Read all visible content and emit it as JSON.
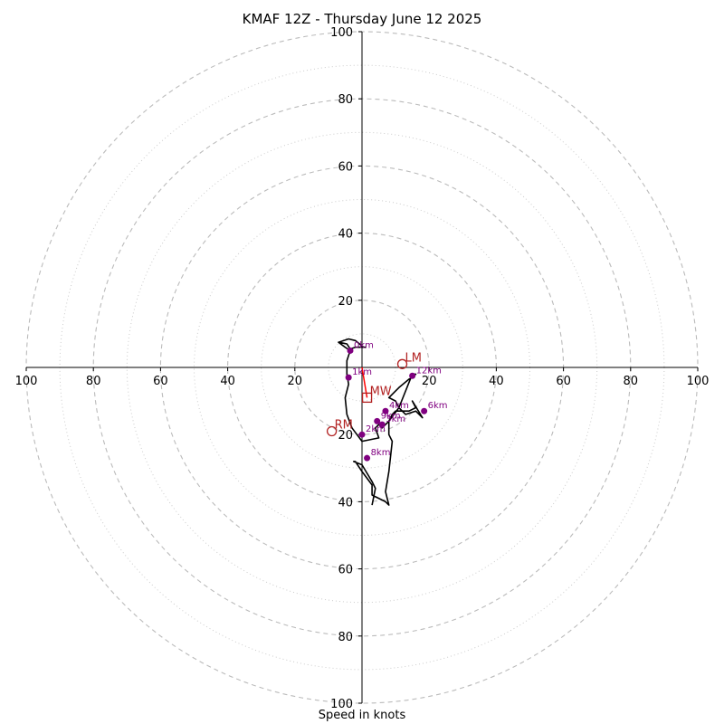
{
  "chart_data": {
    "type": "scatter",
    "title": "KMAF 12Z - Thursday June 12 2025",
    "xlabel": "Speed in knots",
    "ylabel": "",
    "xlim": [
      -100,
      100
    ],
    "ylim": [
      -100,
      100
    ],
    "grid": true,
    "rings_major": [
      20,
      40,
      60,
      80,
      100
    ],
    "rings_minor": [
      10,
      30,
      50,
      70,
      90
    ],
    "x_ticks": [
      "100",
      "80",
      "60",
      "40",
      "20",
      "20",
      "40",
      "60",
      "80",
      "100"
    ],
    "x_tick_values": [
      -100,
      -80,
      -60,
      -40,
      -20,
      20,
      40,
      60,
      80,
      100
    ],
    "y_ticks": [
      "100",
      "80",
      "60",
      "40",
      "20",
      "20",
      "40",
      "60",
      "80",
      "100"
    ],
    "y_tick_values": [
      100,
      80,
      60,
      40,
      20,
      -20,
      -40,
      -60,
      -80,
      -100
    ],
    "hodograph_trace": [
      [
        -7,
        7.5
      ],
      [
        -4,
        8.5
      ],
      [
        -2,
        8
      ],
      [
        0.5,
        6
      ],
      [
        1,
        6
      ],
      [
        -2,
        6
      ],
      [
        -3.5,
        5.5
      ],
      [
        -4.5,
        7
      ],
      [
        -7,
        7.5
      ],
      [
        -5,
        6
      ],
      [
        -3.5,
        5
      ],
      [
        -4.5,
        2
      ],
      [
        -4.5,
        -2
      ],
      [
        -4,
        -5
      ],
      [
        -5,
        -9
      ],
      [
        -4.5,
        -14
      ],
      [
        -3,
        -18
      ],
      [
        -1.5,
        -20
      ],
      [
        0,
        -22
      ],
      [
        5,
        -21
      ],
      [
        4,
        -18
      ],
      [
        5,
        -17
      ],
      [
        6,
        -18
      ],
      [
        8,
        -16
      ],
      [
        9,
        -14
      ],
      [
        10,
        -13
      ],
      [
        14,
        -13
      ],
      [
        16,
        -12
      ],
      [
        15,
        -10
      ],
      [
        18,
        -15
      ],
      [
        16,
        -13
      ],
      [
        13,
        -14
      ],
      [
        11,
        -12
      ],
      [
        10,
        -10
      ],
      [
        8,
        -9
      ],
      [
        11,
        -6
      ],
      [
        14,
        -3.5
      ],
      [
        15,
        -3
      ],
      [
        16,
        -2
      ],
      [
        15,
        -2
      ],
      [
        11,
        -12
      ],
      [
        8,
        -16
      ],
      [
        8,
        -20
      ],
      [
        9,
        -22
      ],
      [
        8,
        -31
      ],
      [
        7,
        -37
      ],
      [
        8,
        -41
      ],
      [
        7,
        -40
      ],
      [
        3,
        -38
      ],
      [
        3,
        -35
      ],
      [
        0,
        -31
      ],
      [
        -2,
        -28
      ],
      [
        -2.5,
        -28
      ],
      [
        0,
        -29
      ],
      [
        3,
        -34
      ],
      [
        4,
        -36
      ],
      [
        3,
        -41
      ]
    ],
    "height_points": [
      {
        "label": "0km",
        "u": -3.5,
        "v": 5
      },
      {
        "label": "1km",
        "u": -4,
        "v": -3
      },
      {
        "label": "2km",
        "u": 0,
        "v": -20
      },
      {
        "label": "3km",
        "u": 6,
        "v": -17
      },
      {
        "label": "4km",
        "u": 7,
        "v": -13
      },
      {
        "label": "6km",
        "u": 18.5,
        "v": -13
      },
      {
        "label": "8km",
        "u": 1.5,
        "v": -27
      },
      {
        "label": "9km",
        "u": 4.5,
        "v": -16
      },
      {
        "label": "12km",
        "u": 15,
        "v": -2.5
      }
    ],
    "markers": [
      {
        "label": "LM",
        "u": 12,
        "v": 1,
        "shape": "circle"
      },
      {
        "label": "RM",
        "u": -9,
        "v": -19,
        "shape": "circle"
      },
      {
        "label": "MW",
        "u": 1.5,
        "v": -9,
        "shape": "square"
      }
    ],
    "mean_wind_vector": {
      "from": [
        0,
        0
      ],
      "to": [
        1.5,
        -9
      ]
    },
    "colors": {
      "trace": "#000000",
      "height_points": "#800080",
      "markers": "#b22222",
      "mean_wind_vector": "#ff0000",
      "grid": "#bbbbbb",
      "axes": "#000000"
    }
  }
}
